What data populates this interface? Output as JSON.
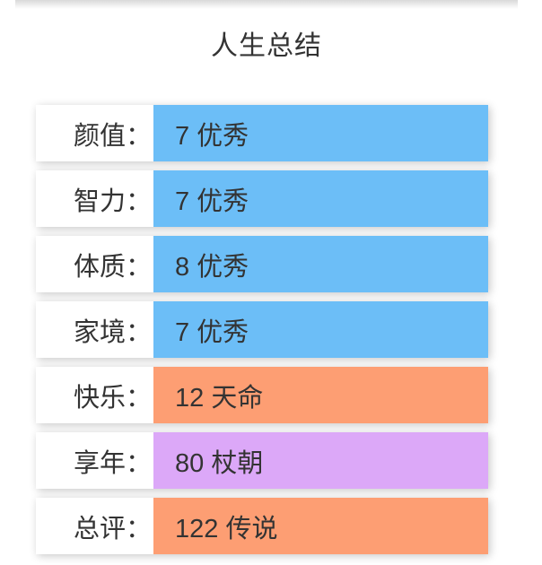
{
  "page": {
    "title": "人生总结",
    "colors": {
      "blue": "#6cbef7",
      "orange": "#fd9e73",
      "purple": "#dca8f8",
      "text": "#333333"
    }
  },
  "summary": {
    "rows": [
      {
        "label": "颜值：",
        "value": "7 优秀",
        "color_key": "blue"
      },
      {
        "label": "智力：",
        "value": "7 优秀",
        "color_key": "blue"
      },
      {
        "label": "体质：",
        "value": "8 优秀",
        "color_key": "blue"
      },
      {
        "label": "家境：",
        "value": "7 优秀",
        "color_key": "blue"
      },
      {
        "label": "快乐：",
        "value": "12 天命",
        "color_key": "orange"
      },
      {
        "label": "享年：",
        "value": "80 杖朝",
        "color_key": "purple"
      },
      {
        "label": "总评：",
        "value": "122 传说",
        "color_key": "orange"
      }
    ]
  }
}
